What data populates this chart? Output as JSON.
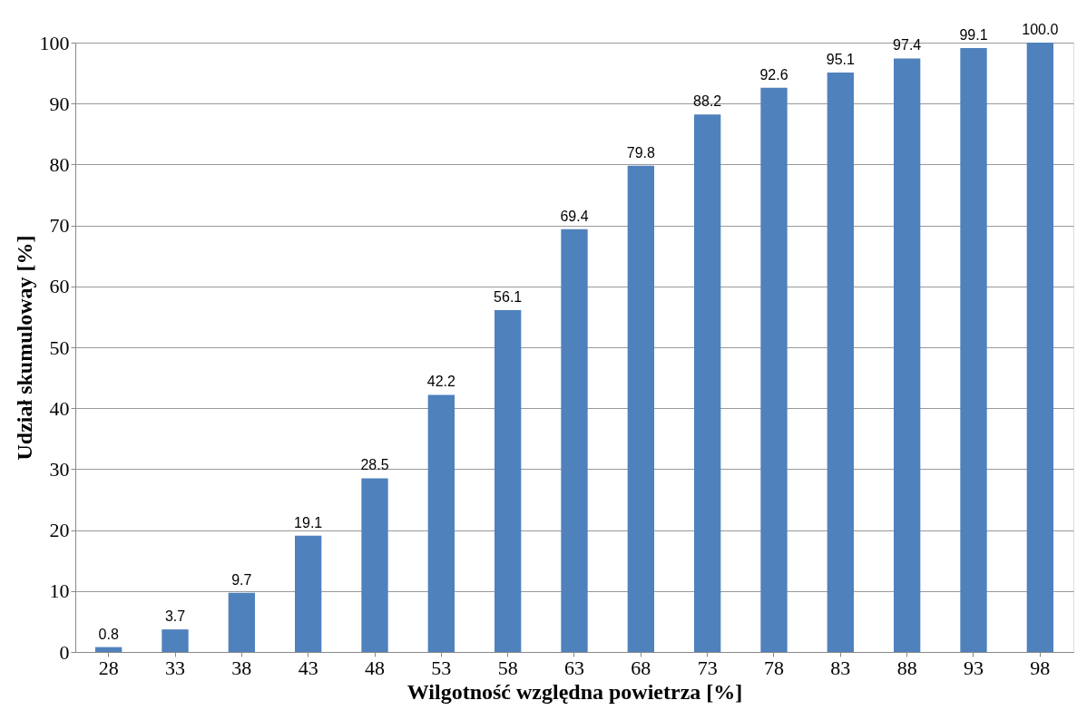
{
  "chart_data": {
    "type": "bar",
    "xlabel": "Wilgotność względna powietrza [%]",
    "ylabel": "Udział skumuloway [%]",
    "categories": [
      "28",
      "33",
      "38",
      "43",
      "48",
      "53",
      "58",
      "63",
      "68",
      "73",
      "78",
      "83",
      "88",
      "93",
      "98"
    ],
    "values": [
      0.8,
      3.7,
      9.7,
      19.1,
      28.5,
      42.2,
      56.1,
      69.4,
      79.8,
      88.2,
      92.6,
      95.1,
      97.4,
      99.1,
      100.0
    ],
    "value_labels": [
      "0.8",
      "3.7",
      "9.7",
      "19.1",
      "28.5",
      "42.2",
      "56.1",
      "69.4",
      "79.8",
      "88.2",
      "92.6",
      "95.1",
      "97.4",
      "99.1",
      "100.0"
    ],
    "color": "#4f81bd",
    "ylim": [
      0,
      100
    ],
    "yticks": [
      0,
      10,
      20,
      30,
      40,
      50,
      60,
      70,
      80,
      90,
      100
    ],
    "grid": "y"
  }
}
